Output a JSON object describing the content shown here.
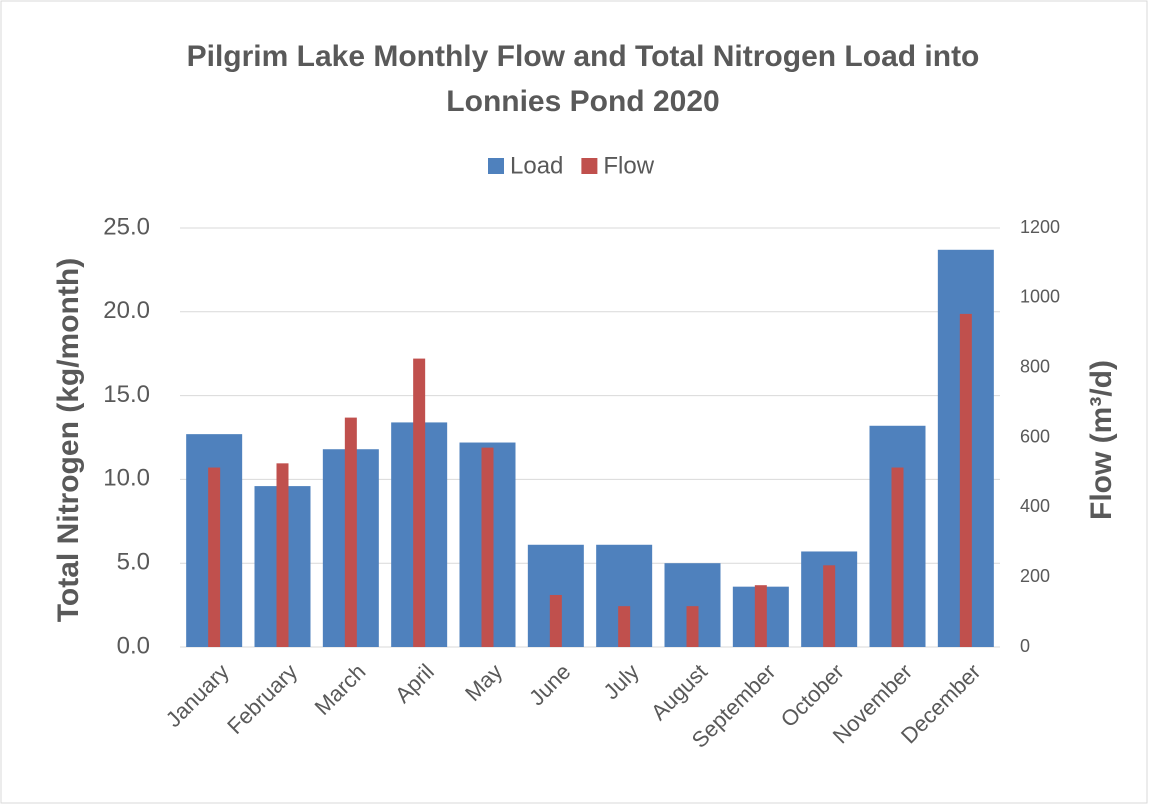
{
  "chart_data": {
    "type": "bar",
    "title": [
      "Pilgrim Lake Monthly Flow and Total Nitrogen Load into",
      "Lonnies Pond 2020"
    ],
    "y_label": "Total Nitrogen (kg/month)",
    "y2_label": "Flow (m³/d)",
    "categories": [
      "January",
      "February",
      "March",
      "April",
      "May",
      "June",
      "July",
      "August",
      "September",
      "October",
      "November",
      "December"
    ],
    "series": [
      {
        "name": "Load",
        "color": "#4f81bd",
        "values": [
          12.7,
          9.6,
          11.8,
          13.4,
          12.2,
          6.1,
          6.1,
          5.0,
          3.6,
          5.7,
          13.2,
          23.7
        ]
      },
      {
        "name": "Flow",
        "color": "#c0504d",
        "axis": "y2",
        "values": [
          514,
          526,
          657,
          826,
          571,
          149,
          117,
          117,
          177,
          234,
          514,
          954
        ]
      }
    ],
    "ylim": [
      0,
      25
    ],
    "yticks": [
      {
        "value": 0,
        "label": "0.0"
      },
      {
        "value": 5,
        "label": "5.0"
      },
      {
        "value": 10,
        "label": "10.0"
      },
      {
        "value": 15,
        "label": "15.0"
      },
      {
        "value": 20,
        "label": "20.0"
      },
      {
        "value": 25,
        "label": "25.0"
      }
    ],
    "y2lim": [
      0,
      1200
    ],
    "y2ticks": [
      0,
      200,
      400,
      600,
      800,
      1000,
      1200
    ],
    "grid": true,
    "legend": "top"
  }
}
